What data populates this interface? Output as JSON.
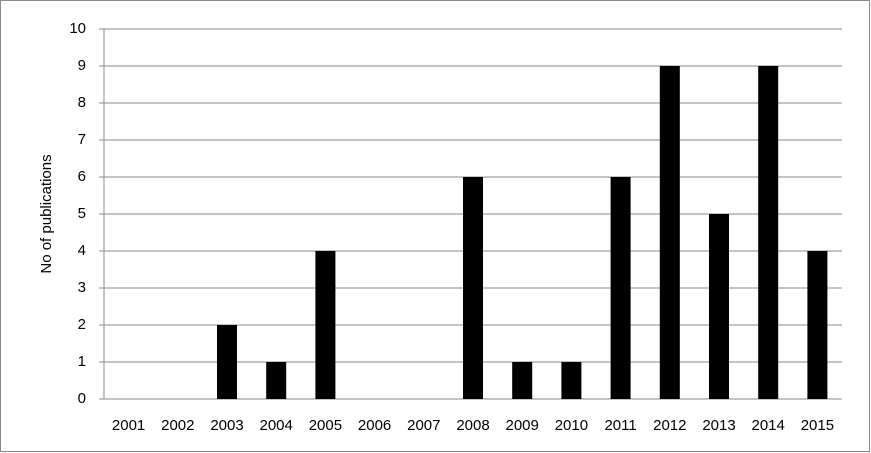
{
  "chart_data": {
    "type": "bar",
    "y_label": "No of publications",
    "categories": [
      "2001",
      "2002",
      "2003",
      "2004",
      "2005",
      "2006",
      "2007",
      "2008",
      "2009",
      "2010",
      "2011",
      "2012",
      "2013",
      "2014",
      "2015"
    ],
    "values": [
      0,
      0,
      2,
      1,
      4,
      0,
      0,
      6,
      1,
      1,
      6,
      9,
      5,
      9,
      4
    ],
    "color": "#000000",
    "ylim": [
      0,
      10
    ],
    "yticks": [
      0,
      1,
      2,
      3,
      4,
      5,
      6,
      7,
      8,
      9,
      10
    ],
    "grid": true
  }
}
